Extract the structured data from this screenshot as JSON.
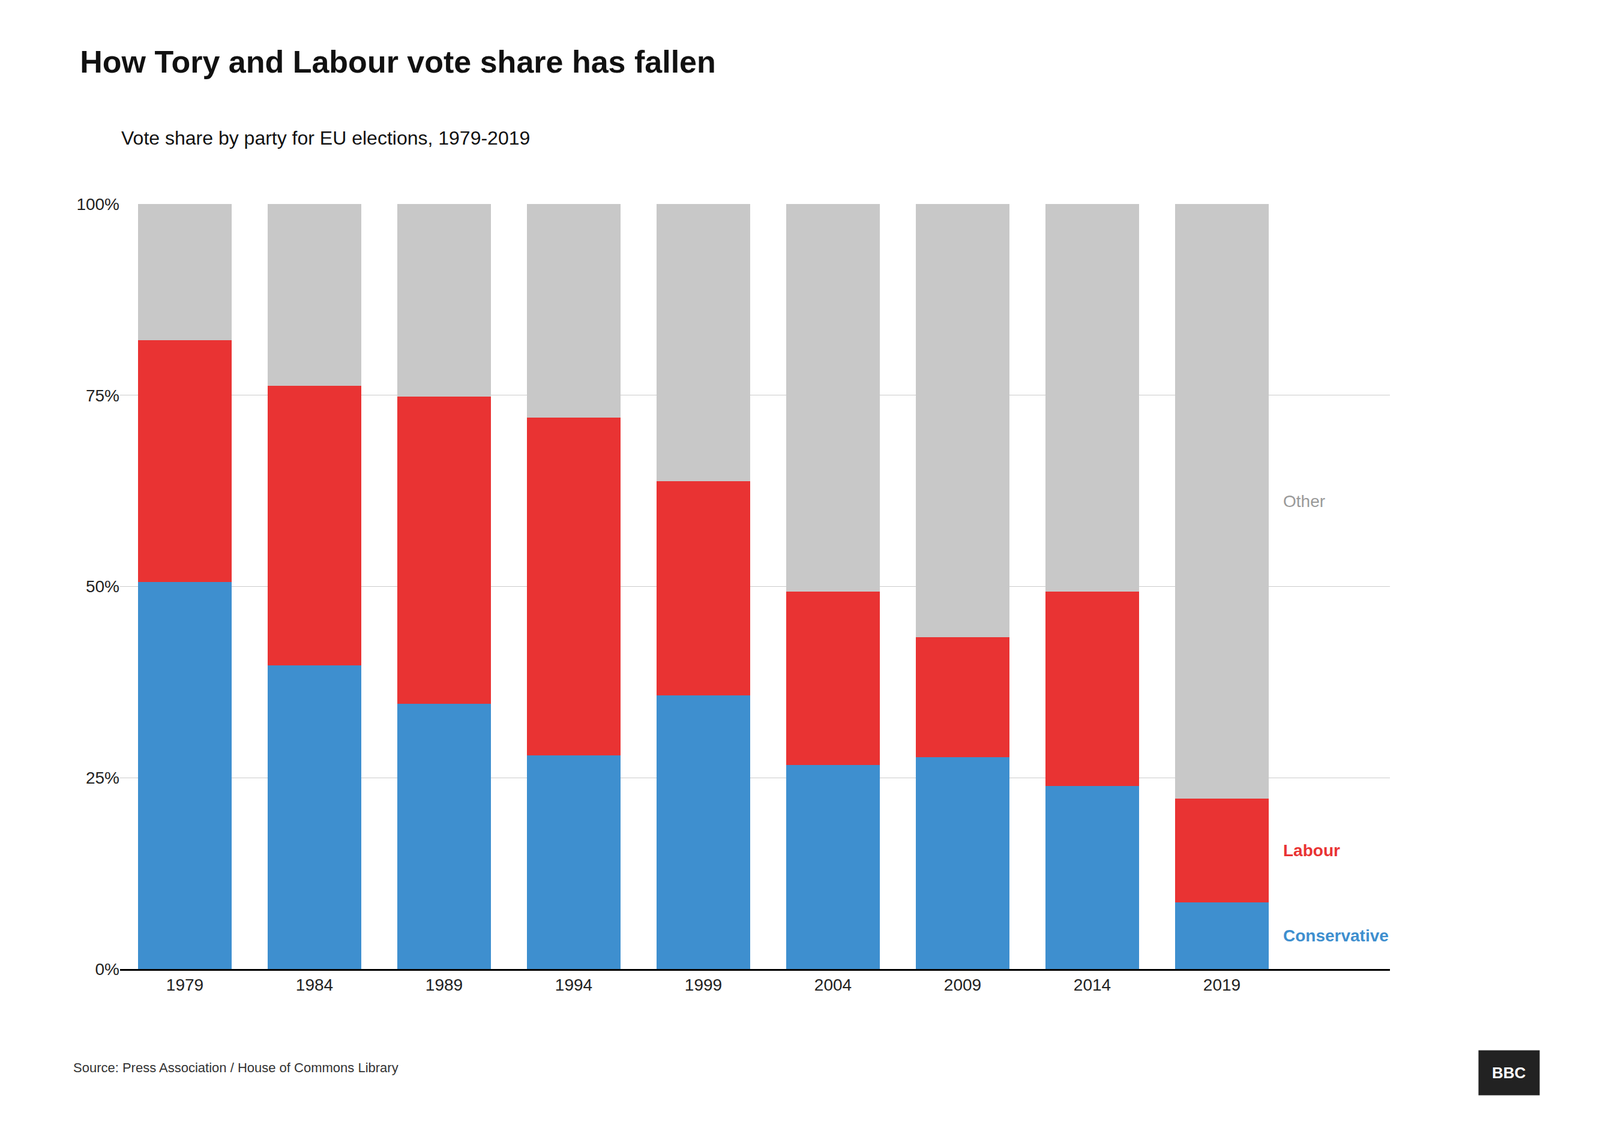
{
  "chart_data": {
    "type": "bar",
    "stacked": true,
    "title": "How Tory and Labour vote share has fallen",
    "subtitle": "Vote share by party for EU elections, 1979-2019",
    "annotations": [
      "Source: Press Association / House of Commons Library",
      "BBC"
    ],
    "categories": [
      "1979",
      "1984",
      "1989",
      "1994",
      "1999",
      "2004",
      "2009",
      "2014",
      "2019"
    ],
    "series": [
      {
        "name": "Conservative",
        "color": "#3e8fcf",
        "values": [
          50.6,
          39.7,
          34.7,
          27.9,
          35.8,
          26.7,
          27.7,
          23.9,
          8.7
        ]
      },
      {
        "name": "Labour",
        "color": "#e93333",
        "values": [
          31.6,
          36.5,
          40.1,
          44.2,
          28.0,
          22.6,
          15.7,
          25.4,
          13.6
        ]
      },
      {
        "name": "Other",
        "color": "#c8c8c8",
        "values": [
          17.8,
          23.8,
          25.2,
          27.9,
          36.2,
          50.7,
          56.6,
          50.7,
          77.7
        ]
      }
    ],
    "ylim": [
      0,
      100
    ],
    "yticks": [
      {
        "value": 0,
        "label": "0%"
      },
      {
        "value": 25,
        "label": "25%"
      },
      {
        "value": 50,
        "label": "50%"
      },
      {
        "value": 75,
        "label": "75%"
      },
      {
        "value": 100,
        "label": "100%"
      }
    ],
    "grid": true
  }
}
